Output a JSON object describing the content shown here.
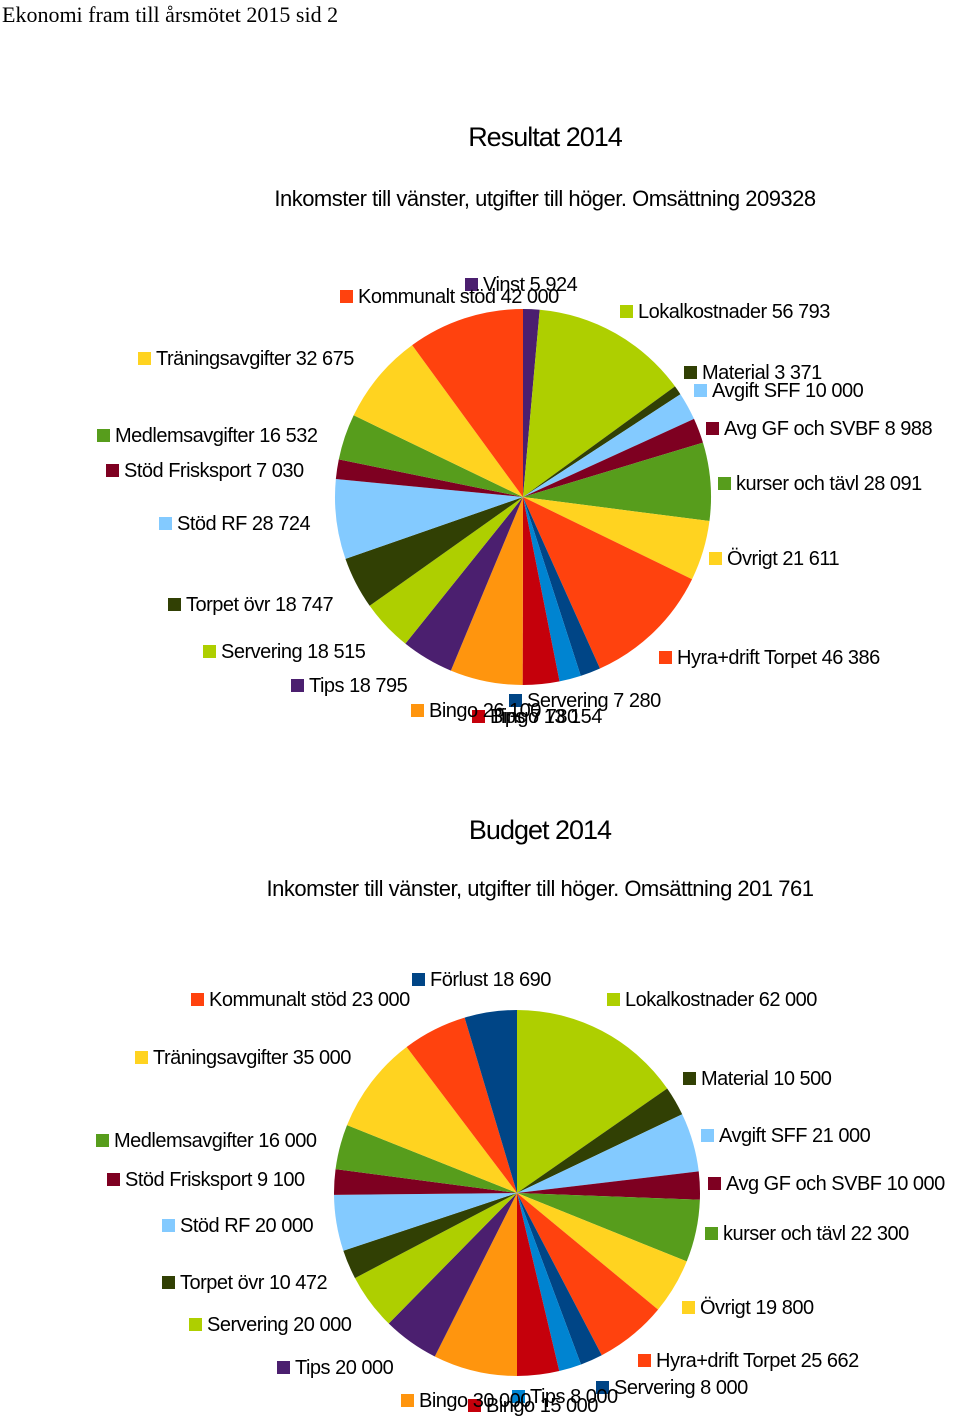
{
  "document": {
    "header": "Ekonomi fram till årsmötet 2015 sid 2"
  },
  "chart_data": [
    {
      "type": "pie",
      "title": "Resultat 2014",
      "subtitle": "Inkomster till vänster, utgifter till höger. Omsättning 209328",
      "slices": [
        {
          "label": "Vinst 5 924",
          "value": 5924,
          "color": "#4b1f6f"
        },
        {
          "label": "Lokalkostnader 56 793",
          "value": 56793,
          "color": "#aecf00"
        },
        {
          "label": "Material 3 371",
          "value": 3371,
          "color": "#314004"
        },
        {
          "label": "Avgift SFF 10 000",
          "value": 10000,
          "color": "#83caff"
        },
        {
          "label": "Avg GF och SVBF 8 988",
          "value": 8988,
          "color": "#7e0021"
        },
        {
          "label": "kurser och tävl 28 091",
          "value": 28091,
          "color": "#579d1c"
        },
        {
          "label": "Övrigt 21 611",
          "value": 21611,
          "color": "#ffd320"
        },
        {
          "label": "Hyra+drift Torpet 46 386",
          "value": 46386,
          "color": "#ff420e"
        },
        {
          "label": "Servering 7 280",
          "value": 7280,
          "color": "#004586"
        },
        {
          "label": "Tips 7 780",
          "value": 7780,
          "color": "#0084d1"
        },
        {
          "label": "Bingo 13 154",
          "value": 13154,
          "color": "#c5000b"
        },
        {
          "label": "Bingo 26 100",
          "value": 26100,
          "color": "#ff950e"
        },
        {
          "label": "Tips 18 795",
          "value": 18795,
          "color": "#4b1f6f"
        },
        {
          "label": "Servering 18 515",
          "value": 18515,
          "color": "#aecf00"
        },
        {
          "label": "Torpet övr 18 747",
          "value": 18747,
          "color": "#314004"
        },
        {
          "label": "Stöd RF 28 724",
          "value": 28724,
          "color": "#83caff"
        },
        {
          "label": "Stöd Frisksport 7 030",
          "value": 7030,
          "color": "#7e0021"
        },
        {
          "label": "Medlemsavgifter 16 532",
          "value": 16532,
          "color": "#579d1c"
        },
        {
          "label": "Träningsavgifter 32 675",
          "value": 32675,
          "color": "#ffd320"
        },
        {
          "label": "Kommunalt stöd 42 000",
          "value": 42000,
          "color": "#ff420e"
        }
      ]
    },
    {
      "type": "pie",
      "title": "Budget 2014",
      "subtitle": "Inkomster till vänster, utgifter till höger. Omsättning 201 761",
      "slices": [
        {
          "label": "Lokalkostnader 62 000",
          "value": 62000,
          "color": "#aecf00"
        },
        {
          "label": "Material 10 500",
          "value": 10500,
          "color": "#314004"
        },
        {
          "label": "Avgift SFF 21 000",
          "value": 21000,
          "color": "#83caff"
        },
        {
          "label": "Avg GF och SVBF 10 000",
          "value": 10000,
          "color": "#7e0021"
        },
        {
          "label": "kurser och tävl 22 300",
          "value": 22300,
          "color": "#579d1c"
        },
        {
          "label": "Övrigt 19 800",
          "value": 19800,
          "color": "#ffd320"
        },
        {
          "label": "Hyra+drift Torpet 25 662",
          "value": 25662,
          "color": "#ff420e"
        },
        {
          "label": "Servering 8 000",
          "value": 8000,
          "color": "#004586"
        },
        {
          "label": "Tips 8 000",
          "value": 8000,
          "color": "#0084d1"
        },
        {
          "label": "Bingo 15 000",
          "value": 15000,
          "color": "#c5000b"
        },
        {
          "label": "Bingo 30 000",
          "value": 30000,
          "color": "#ff950e"
        },
        {
          "label": "Tips 20 000",
          "value": 20000,
          "color": "#4b1f6f"
        },
        {
          "label": "Servering 20 000",
          "value": 20000,
          "color": "#aecf00"
        },
        {
          "label": "Torpet övr 10 472",
          "value": 10472,
          "color": "#314004"
        },
        {
          "label": "Stöd RF 20 000",
          "value": 20000,
          "color": "#83caff"
        },
        {
          "label": "Stöd Frisksport 9 100",
          "value": 9100,
          "color": "#7e0021"
        },
        {
          "label": "Medlemsavgifter 16 000",
          "value": 16000,
          "color": "#579d1c"
        },
        {
          "label": "Träningsavgifter 35 000",
          "value": 35000,
          "color": "#ffd320"
        },
        {
          "label": "Kommunalt stöd 23 000",
          "value": 23000,
          "color": "#ff420e"
        },
        {
          "label": "Förlust 18 690",
          "value": 18690,
          "color": "#004586"
        }
      ]
    }
  ]
}
